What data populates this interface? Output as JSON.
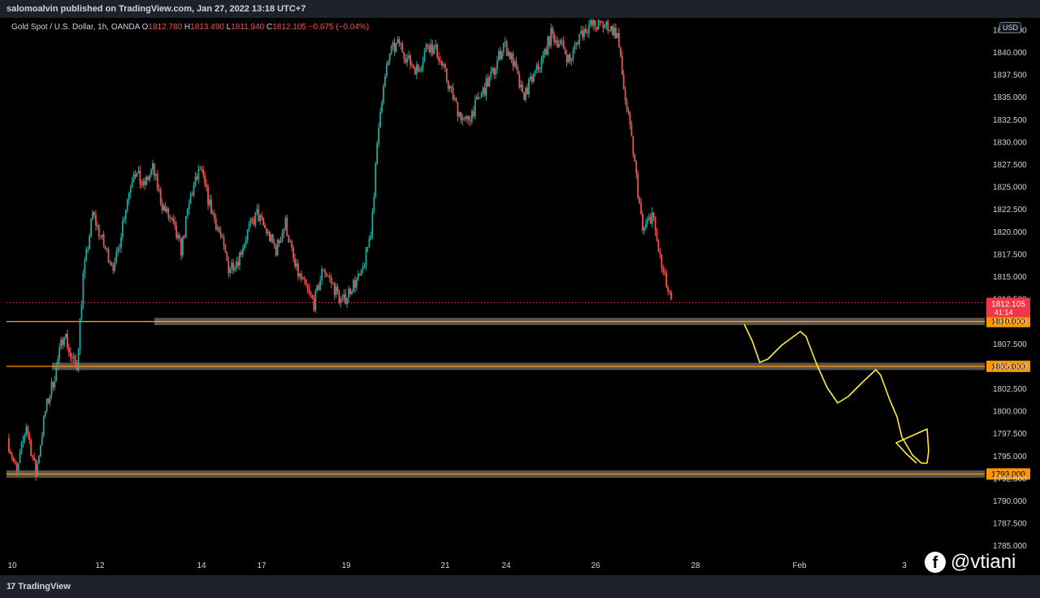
{
  "header": {
    "published": "salomoalvin published on TradingView.com, Jan 27, 2022 13:18 UTC+7"
  },
  "legend": {
    "symbol": "Gold Spot / U.S. Dollar, 1h, OANDA",
    "o_label": "O",
    "o_value": "1812.780",
    "h_label": "H",
    "h_value": "1813.490",
    "l_label": "L",
    "l_value": "1811.940",
    "c_label": "C",
    "c_value": "1812.105",
    "change": "−0.675 (−0.04%)"
  },
  "currency_button": "USD",
  "footer": {
    "brand": "TradingView",
    "brand_mark": "17"
  },
  "watermark": {
    "fb_glyph": "f",
    "handle": "@vtiani"
  },
  "colors": {
    "up": "#26a69a",
    "down": "#ef5350",
    "level_line": "#ff9800",
    "zone_fill": "#6b6358",
    "drawing": "#ffeb3b",
    "price_badge": "#f23645"
  },
  "chart_data": {
    "type": "candlestick",
    "symbol": "Gold Spot / U.S. Dollar",
    "interval": "1h",
    "y_axis": {
      "min": 1785,
      "max": 1842.5,
      "step": 2.5,
      "position": "right",
      "tick_labels": [
        "1785.000",
        "1787.500",
        "1790.000",
        "1792.500",
        "1795.000",
        "1797.500",
        "1800.000",
        "1802.500",
        "1805.000",
        "1807.500",
        "1810.000",
        "1812.500",
        "1815.000",
        "1817.500",
        "1820.000",
        "1822.500",
        "1825.000",
        "1827.500",
        "1830.000",
        "1832.500",
        "1835.000",
        "1837.500",
        "1840.000",
        "1842.500"
      ]
    },
    "x_axis": {
      "tick_labels": [
        "10",
        "12",
        "14",
        "17",
        "19",
        "21",
        "24",
        "26",
        "28",
        "Feb",
        "3"
      ]
    },
    "current_price": {
      "value": 1812.105,
      "label": "1812.105",
      "countdown": "41:14"
    },
    "levels": [
      {
        "value": 1810,
        "label": "1810.000"
      },
      {
        "value": 1805,
        "label": "1805.000"
      },
      {
        "value": 1793,
        "label": "1793.000"
      }
    ],
    "path_keypoints": [
      [
        0,
        1797
      ],
      [
        6,
        1793
      ],
      [
        12,
        1798.5
      ],
      [
        18,
        1793
      ],
      [
        24,
        1800
      ],
      [
        30,
        1804
      ],
      [
        36,
        1809
      ],
      [
        40,
        1806
      ],
      [
        44,
        1805
      ],
      [
        48,
        1815
      ],
      [
        54,
        1822
      ],
      [
        58,
        1820
      ],
      [
        62,
        1818
      ],
      [
        68,
        1816
      ],
      [
        74,
        1822
      ],
      [
        80,
        1827
      ],
      [
        86,
        1825
      ],
      [
        92,
        1827
      ],
      [
        98,
        1823
      ],
      [
        104,
        1821
      ],
      [
        110,
        1818
      ],
      [
        116,
        1824
      ],
      [
        122,
        1827
      ],
      [
        128,
        1823
      ],
      [
        134,
        1820
      ],
      [
        140,
        1816
      ],
      [
        146,
        1817
      ],
      [
        152,
        1820
      ],
      [
        158,
        1822
      ],
      [
        164,
        1820
      ],
      [
        170,
        1818
      ],
      [
        176,
        1821
      ],
      [
        182,
        1816
      ],
      [
        188,
        1814
      ],
      [
        194,
        1812
      ],
      [
        200,
        1816
      ],
      [
        206,
        1814
      ],
      [
        212,
        1812
      ],
      [
        218,
        1814
      ],
      [
        224,
        1815
      ],
      [
        230,
        1820
      ],
      [
        236,
        1834
      ],
      [
        242,
        1840
      ],
      [
        248,
        1841
      ],
      [
        254,
        1839
      ],
      [
        260,
        1838
      ],
      [
        266,
        1841
      ],
      [
        272,
        1840
      ],
      [
        278,
        1837
      ],
      [
        284,
        1834
      ],
      [
        290,
        1832
      ],
      [
        296,
        1834
      ],
      [
        302,
        1836
      ],
      [
        308,
        1838
      ],
      [
        314,
        1841
      ],
      [
        320,
        1839
      ],
      [
        326,
        1835
      ],
      [
        332,
        1837
      ],
      [
        338,
        1839
      ],
      [
        344,
        1842
      ],
      [
        350,
        1841
      ],
      [
        356,
        1839
      ],
      [
        362,
        1842
      ],
      [
        368,
        1843
      ],
      [
        374,
        1843
      ],
      [
        380,
        1843
      ],
      [
        386,
        1842
      ],
      [
        390,
        1836
      ],
      [
        396,
        1829
      ],
      [
        402,
        1820
      ],
      [
        408,
        1822
      ],
      [
        414,
        1816
      ],
      [
        420,
        1812
      ]
    ]
  }
}
